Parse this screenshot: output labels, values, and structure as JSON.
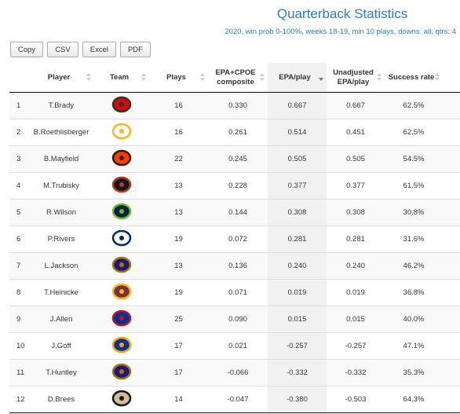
{
  "header": {
    "title": "Quarterback Statistics",
    "subtitle": "2020, win prob 0-100%, weeks 18-19, min 10 plays, downs: all, qtrs: 4"
  },
  "buttons": [
    "Copy",
    "CSV",
    "Excel",
    "PDF"
  ],
  "table": {
    "columns": [
      "Player",
      "Team",
      "Plays",
      "EPA+CPOE composite",
      "EPA/play",
      "Unadjusted EPA/play",
      "Success rate"
    ],
    "rows": [
      [
        "1",
        "T.Brady",
        "16",
        "0.330",
        "0.667",
        "0.667",
        "62.5%"
      ],
      [
        "2",
        "B.Roethlisberger",
        "16",
        "0.261",
        "0.514",
        "0.451",
        "62.5%"
      ],
      [
        "3",
        "B.Mayfield",
        "22",
        "0.245",
        "0.505",
        "0.505",
        "54.5%"
      ],
      [
        "4",
        "M.Trubisky",
        "13",
        "0.228",
        "0.377",
        "0.377",
        "61.5%"
      ],
      [
        "5",
        "R.Wilson",
        "13",
        "0.144",
        "0.308",
        "0.308",
        "30.8%"
      ],
      [
        "6",
        "P.Rivers",
        "19",
        "0.072",
        "0.281",
        "0.281",
        "31.6%"
      ],
      [
        "7",
        "L.Jackson",
        "13",
        "0.136",
        "0.240",
        "0.240",
        "46.2%"
      ],
      [
        "8",
        "T.Heinicke",
        "19",
        "0.071",
        "0.019",
        "0.019",
        "36.8%"
      ],
      [
        "9",
        "J.Allen",
        "25",
        "0.090",
        "0.015",
        "0.015",
        "40.0%"
      ],
      [
        "10",
        "J.Goff",
        "17",
        "0.021",
        "-0.257",
        "-0.257",
        "47.1%"
      ],
      [
        "11",
        "T.Huntley",
        "17",
        "-0.066",
        "-0.332",
        "-0.332",
        "35.3%"
      ],
      [
        "12",
        "D.Brees",
        "14",
        "-0.047",
        "-0.380",
        "-0.503",
        "64.3%"
      ]
    ]
  }
}
